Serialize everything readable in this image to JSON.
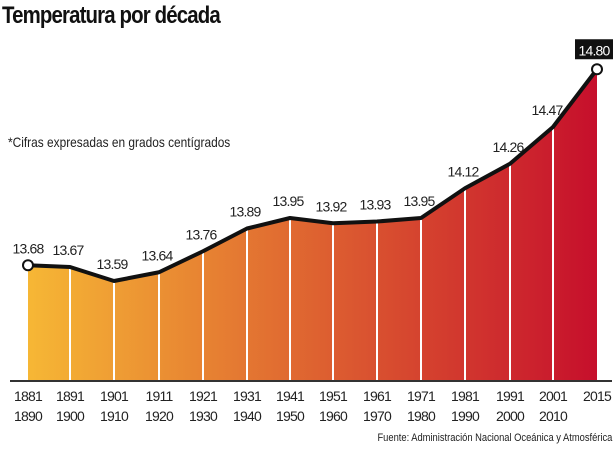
{
  "chart_data": {
    "type": "area",
    "title": "Temperatura por década",
    "subtitle": "*Cifras expresadas en grados centígrados",
    "source": "Fuente: Administración Nacional Oceánica y Atmosférica",
    "categories": [
      [
        "1881",
        "1890"
      ],
      [
        "1891",
        "1900"
      ],
      [
        "1901",
        "1910"
      ],
      [
        "1911",
        "1920"
      ],
      [
        "1921",
        "1930"
      ],
      [
        "1931",
        "1940"
      ],
      [
        "1941",
        "1950"
      ],
      [
        "1951",
        "1960"
      ],
      [
        "1961",
        "1970"
      ],
      [
        "1971",
        "1980"
      ],
      [
        "1981",
        "1990"
      ],
      [
        "1991",
        "2000"
      ],
      [
        "2001",
        "2010"
      ],
      [
        "2015",
        ""
      ]
    ],
    "values": [
      13.68,
      13.67,
      13.59,
      13.64,
      13.76,
      13.89,
      13.95,
      13.92,
      13.93,
      13.95,
      14.12,
      14.26,
      14.47,
      14.8
    ],
    "value_labels": [
      "13.68",
      "13.67",
      "13.59",
      "13.64",
      "13.76",
      "13.89",
      "13.95",
      "13.92",
      "13.93",
      "13.95",
      "14.12",
      "14.26",
      "14.47",
      "14.80"
    ],
    "highlight_last": true,
    "colors": {
      "start": "#f6b735",
      "end": "#c60f2c",
      "line": "#111111",
      "highlight_bg": "#111111"
    },
    "grid": false
  }
}
